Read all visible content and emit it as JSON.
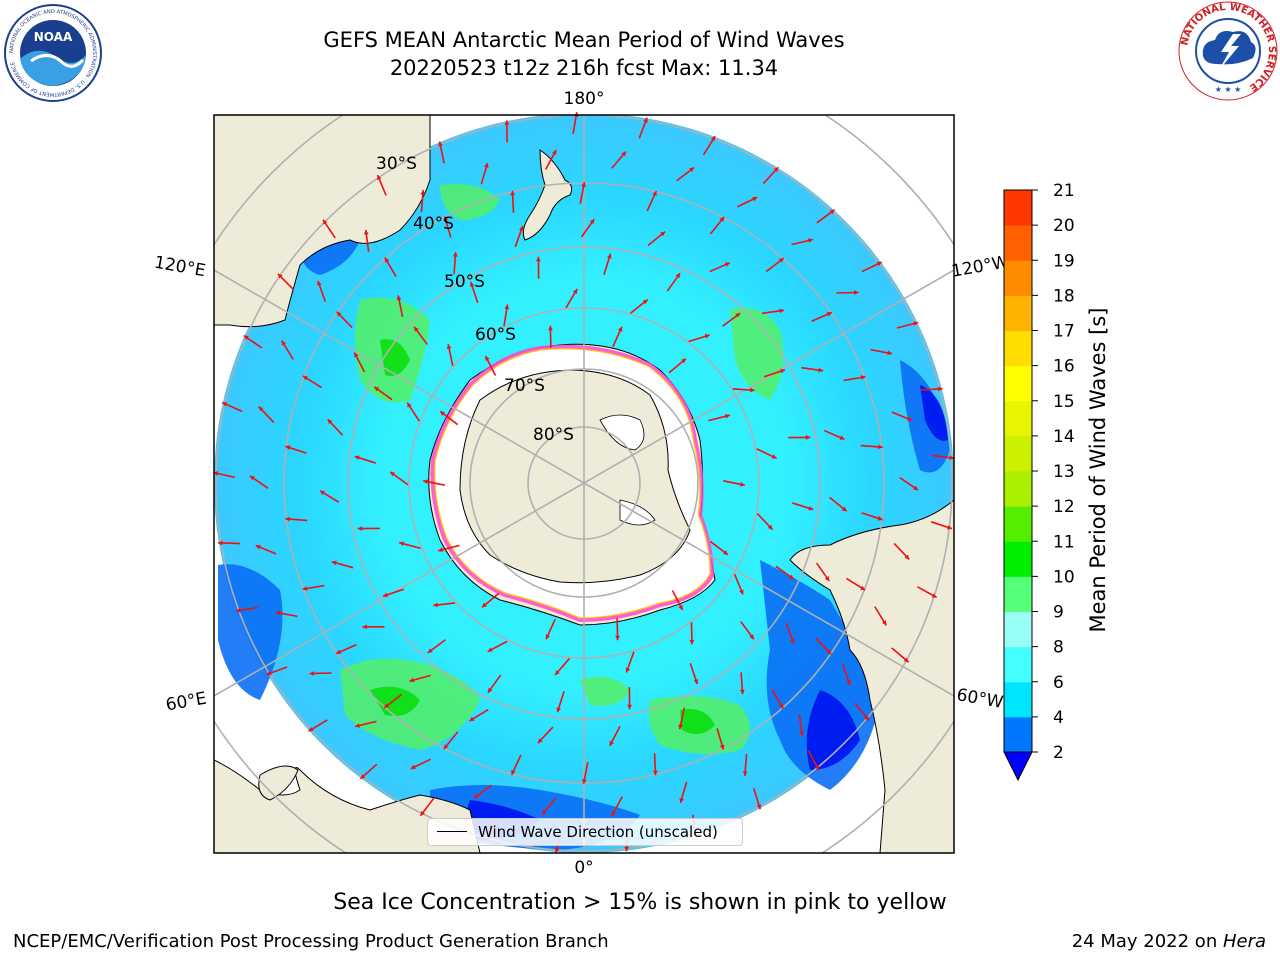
{
  "header": {
    "title_line1": "GEFS MEAN Antarctic Mean Period of Wind Waves",
    "title_line2": "20220523 t12z 216h fcst   Max: 11.34"
  },
  "logos": {
    "noaa_text": "NOAA",
    "noaa_ring_text": "NATIONAL OCEANIC AND ATMOSPHERIC ADMINISTRATION · U.S. DEPARTMENT OF COMMERCE",
    "nws_ring_text": "NATIONAL WEATHER SERVICE"
  },
  "map": {
    "projection": "south-polar-stereographic",
    "lon_labels": [
      "180°",
      "120°E",
      "120°W",
      "60°E",
      "60°W",
      "0°"
    ],
    "lat_labels": [
      "30°S",
      "40°S",
      "50°S",
      "60°S",
      "70°S",
      "80°S"
    ],
    "legend_label": "Wind Wave Direction (unscaled)",
    "colors": {
      "land": "#eeecd9",
      "ice": "#ffffff",
      "ice_edge": [
        "#ff44cc",
        "#ffcc00"
      ],
      "arrow": "#ee1111",
      "grid": "#b0b0b0"
    }
  },
  "colorbar": {
    "label": "Mean Period of Wind Waves [s]",
    "ticks": [
      "2",
      "4",
      "6",
      "8",
      "9",
      "10",
      "11",
      "12",
      "13",
      "14",
      "15",
      "16",
      "17",
      "18",
      "19",
      "20",
      "21"
    ],
    "colors": [
      "#0077ff",
      "#00e5ff",
      "#44ffff",
      "#99fff5",
      "#55ff77",
      "#00ee00",
      "#55ee00",
      "#aaee00",
      "#ccf000",
      "#e6f500",
      "#ffff00",
      "#ffdd00",
      "#ffb300",
      "#ff8c00",
      "#ff6000",
      "#ff3800",
      "#ff0000"
    ],
    "under_color": "#0000ff"
  },
  "caption": "Sea Ice Concentration > 15% is shown in pink to yellow",
  "footer": {
    "left": "NCEP/EMC/Verification Post Processing Product Generation Branch",
    "right_date": "24 May 2022 on ",
    "right_machine": "Hera"
  }
}
